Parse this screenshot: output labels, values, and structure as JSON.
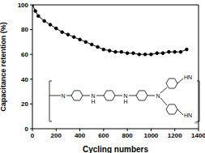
{
  "chart_data": {
    "type": "line",
    "x_label": "Cycling numbers",
    "y_label": "Capacitance retention (%)",
    "series": [
      {
        "name": "Capacitance retention",
        "color": "#000000",
        "marker": "circle",
        "x": [
          0,
          25,
          50,
          100,
          150,
          200,
          250,
          300,
          350,
          400,
          450,
          500,
          550,
          600,
          650,
          700,
          750,
          800,
          850,
          900,
          950,
          1000,
          1050,
          1100,
          1150,
          1200,
          1250,
          1300
        ],
        "values": [
          100,
          95,
          91,
          87,
          84,
          81,
          78,
          76,
          74,
          72,
          70,
          68,
          66,
          64,
          63,
          62,
          62,
          61,
          61,
          60,
          60,
          60,
          61,
          61,
          62,
          62,
          62,
          64
        ]
      }
    ],
    "xlim": [
      0,
      1400
    ],
    "xticks": [
      0,
      200,
      400,
      600,
      800,
      1000,
      1200,
      1400
    ],
    "ylim": [
      0,
      100
    ],
    "yticks": [
      0,
      20,
      40,
      60,
      80,
      100
    ],
    "annotations": [
      "N",
      "N",
      "H",
      "N",
      "H",
      "N",
      "HN",
      "HN",
      "n"
    ]
  }
}
